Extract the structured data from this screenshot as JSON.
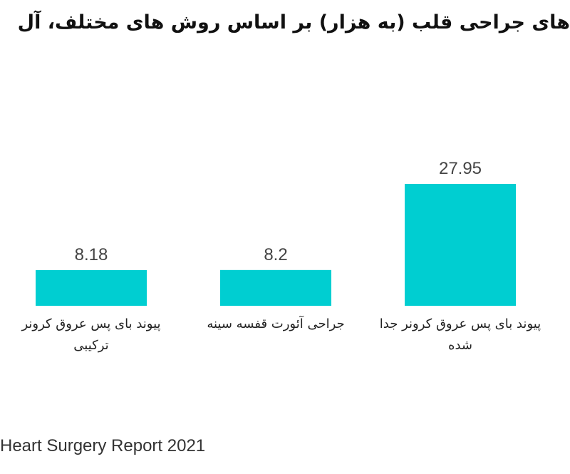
{
  "chart_data": {
    "type": "bar",
    "title": "های جراحی قلب (به هزار) بر اساس روش های مختلف، آل",
    "categories": [
      "پیوند بای پس عروق کرونر ترکیبی",
      "جراحی آئورت قفسه سینه",
      "پیوند بای پس عروق کرونر جدا شده"
    ],
    "values": [
      8.18,
      8.2,
      27.95
    ],
    "value_labels": [
      "8.18",
      "8.2",
      "27.95"
    ],
    "ylim": [
      0,
      28
    ],
    "bar_color": "#00CED1",
    "grid": false
  },
  "source": "Heart Surgery Report 2021"
}
